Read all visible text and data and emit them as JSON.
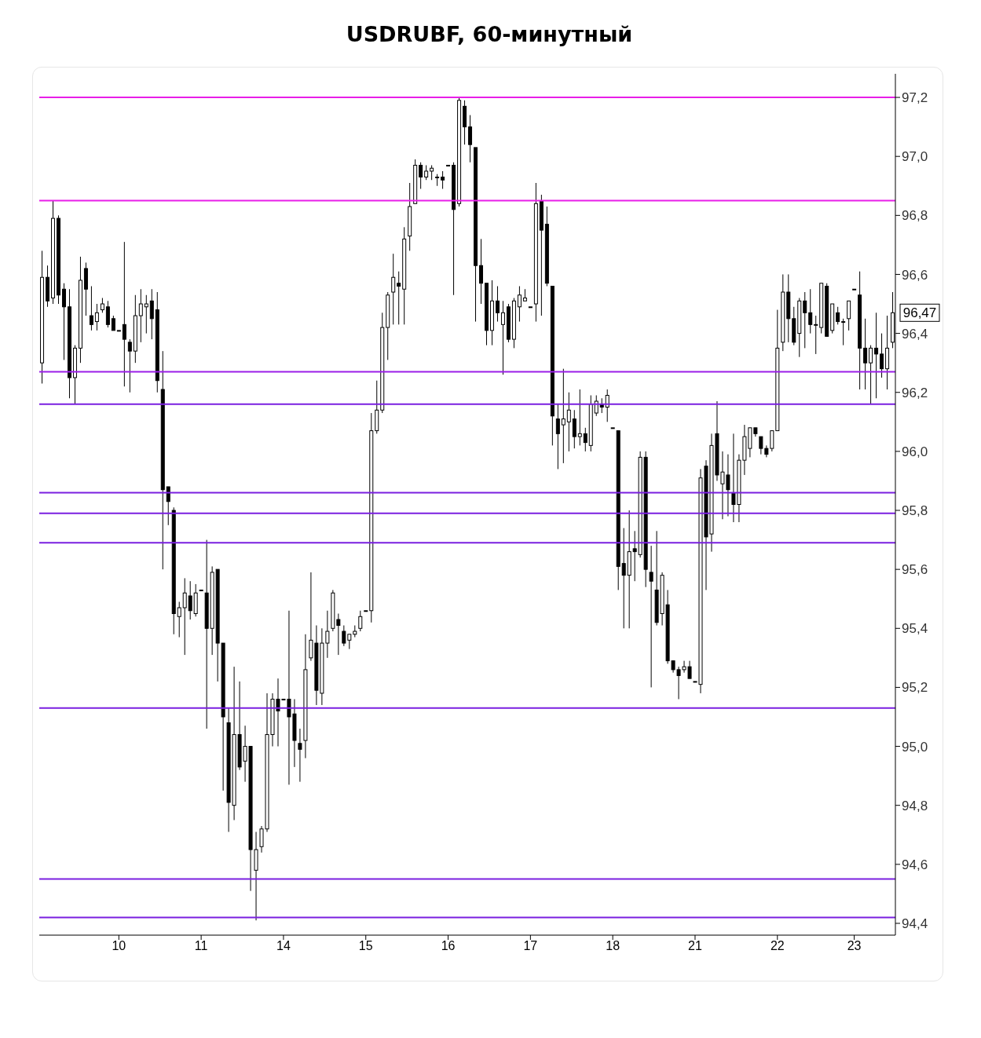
{
  "chart_data": {
    "type": "candlestick",
    "title": "USDRUBF, 60-минутный",
    "color": "#000000",
    "categories": [
      null,
      null,
      null,
      null,
      null,
      null,
      null,
      null,
      null,
      null,
      null,
      null,
      null,
      null,
      "10",
      null,
      null,
      null,
      null,
      null,
      null,
      null,
      null,
      null,
      null,
      null,
      null,
      null,
      null,
      "11",
      null,
      null,
      null,
      null,
      null,
      null,
      null,
      null,
      null,
      null,
      null,
      null,
      null,
      null,
      "14",
      null,
      null,
      null,
      null,
      null,
      null,
      null,
      null,
      null,
      null,
      null,
      null,
      null,
      null,
      "15",
      null,
      null,
      null,
      null,
      null,
      null,
      null,
      null,
      null,
      null,
      null,
      null,
      null,
      null,
      "16",
      null,
      null,
      null,
      null,
      null,
      null,
      null,
      null,
      null,
      null,
      null,
      null,
      null,
      null,
      "17",
      null,
      null,
      null,
      null,
      null,
      null,
      null,
      null,
      null,
      null,
      null,
      null,
      null,
      null,
      "18",
      null,
      null,
      null,
      null,
      null,
      null,
      null,
      null,
      null,
      null,
      null,
      null,
      null,
      null,
      "21",
      null,
      null,
      null,
      null,
      null,
      null,
      null,
      null,
      null,
      null,
      null,
      null,
      null,
      null,
      "22",
      null,
      null,
      null,
      null,
      null,
      null,
      null,
      null,
      null,
      null,
      null,
      null,
      null,
      "23",
      null,
      null,
      null,
      null,
      null,
      null,
      null
    ],
    "ohlc": [
      [
        96.3,
        96.68,
        96.23,
        96.59
      ],
      [
        96.59,
        96.63,
        96.49,
        96.51
      ],
      [
        96.52,
        96.85,
        96.5,
        96.79
      ],
      [
        96.79,
        96.8,
        96.5,
        96.53
      ],
      [
        96.55,
        96.57,
        96.31,
        96.49
      ],
      [
        96.49,
        96.55,
        96.18,
        96.25
      ],
      [
        96.25,
        96.36,
        96.16,
        96.35
      ],
      [
        96.35,
        96.66,
        96.3,
        96.58
      ],
      [
        96.62,
        96.64,
        96.46,
        96.55
      ],
      [
        96.46,
        96.56,
        96.41,
        96.43
      ],
      [
        96.44,
        96.5,
        96.41,
        96.47
      ],
      [
        96.48,
        96.52,
        96.47,
        96.5
      ],
      [
        96.49,
        96.51,
        96.42,
        96.43
      ],
      [
        96.45,
        96.46,
        96.41,
        96.41
      ],
      [
        96.41,
        96.41,
        96.41,
        96.41
      ],
      [
        96.43,
        96.71,
        96.22,
        96.38
      ],
      [
        96.37,
        96.38,
        96.2,
        96.34
      ],
      [
        96.34,
        96.53,
        96.3,
        96.46
      ],
      [
        96.46,
        96.55,
        96.37,
        96.5
      ],
      [
        96.49,
        96.53,
        96.4,
        96.5
      ],
      [
        96.51,
        96.55,
        96.38,
        96.45
      ],
      [
        96.48,
        96.54,
        96.2,
        96.24
      ],
      [
        96.21,
        96.34,
        95.6,
        95.87
      ],
      [
        95.88,
        95.88,
        95.75,
        95.83
      ],
      [
        95.8,
        95.81,
        95.38,
        95.45
      ],
      [
        95.44,
        95.49,
        95.37,
        95.47
      ],
      [
        95.47,
        95.57,
        95.31,
        95.52
      ],
      [
        95.51,
        95.56,
        95.43,
        95.46
      ],
      [
        95.45,
        95.55,
        95.44,
        95.52
      ],
      [
        95.53,
        95.53,
        95.53,
        95.53
      ],
      [
        95.52,
        95.7,
        95.06,
        95.4
      ],
      [
        95.4,
        95.61,
        95.31,
        95.59
      ],
      [
        95.6,
        95.6,
        95.22,
        95.35
      ],
      [
        95.35,
        95.35,
        94.85,
        95.1
      ],
      [
        95.08,
        95.13,
        94.71,
        94.81
      ],
      [
        94.8,
        95.27,
        94.75,
        95.04
      ],
      [
        95.04,
        95.22,
        94.92,
        94.93
      ],
      [
        94.95,
        95.07,
        94.88,
        95.0
      ],
      [
        95.0,
        95.0,
        94.51,
        94.65
      ],
      [
        94.58,
        94.71,
        94.41,
        94.65
      ],
      [
        94.66,
        94.73,
        94.64,
        94.72
      ],
      [
        94.72,
        95.18,
        94.71,
        95.04
      ],
      [
        95.04,
        95.18,
        95.0,
        95.16
      ],
      [
        95.16,
        95.23,
        95.0,
        95.12
      ],
      [
        95.16,
        95.16,
        95.16,
        95.16
      ],
      [
        95.16,
        95.46,
        94.87,
        95.1
      ],
      [
        95.11,
        95.16,
        94.93,
        95.02
      ],
      [
        95.01,
        95.06,
        94.88,
        94.99
      ],
      [
        95.02,
        95.38,
        94.96,
        95.26
      ],
      [
        95.3,
        95.59,
        95.29,
        95.36
      ],
      [
        95.35,
        95.41,
        95.14,
        95.19
      ],
      [
        95.18,
        95.4,
        95.14,
        95.35
      ],
      [
        95.35,
        95.46,
        95.3,
        95.39
      ],
      [
        95.4,
        95.53,
        95.39,
        95.52
      ],
      [
        95.43,
        95.45,
        95.31,
        95.41
      ],
      [
        95.39,
        95.41,
        95.34,
        95.35
      ],
      [
        95.36,
        95.38,
        95.33,
        95.38
      ],
      [
        95.38,
        95.41,
        95.37,
        95.39
      ],
      [
        95.4,
        95.46,
        95.39,
        95.44
      ],
      [
        95.46,
        95.46,
        95.46,
        95.46
      ],
      [
        95.46,
        96.13,
        95.42,
        96.07
      ],
      [
        96.07,
        96.24,
        96.06,
        96.14
      ],
      [
        96.14,
        96.47,
        96.13,
        96.42
      ],
      [
        96.42,
        96.54,
        96.31,
        96.53
      ],
      [
        96.54,
        96.67,
        96.43,
        96.59
      ],
      [
        96.57,
        96.61,
        96.43,
        96.56
      ],
      [
        96.55,
        96.76,
        96.43,
        96.72
      ],
      [
        96.73,
        96.91,
        96.68,
        96.83
      ],
      [
        96.84,
        96.99,
        96.84,
        96.97
      ],
      [
        96.97,
        96.98,
        96.89,
        96.93
      ],
      [
        96.93,
        96.97,
        96.92,
        96.95
      ],
      [
        96.95,
        96.97,
        96.92,
        96.96
      ],
      [
        96.93,
        96.94,
        96.9,
        96.93
      ],
      [
        96.93,
        96.95,
        96.89,
        96.92
      ],
      [
        96.97,
        96.97,
        96.97,
        96.97
      ],
      [
        96.97,
        96.98,
        96.53,
        96.82
      ],
      [
        96.84,
        97.2,
        96.83,
        97.19
      ],
      [
        97.17,
        97.19,
        97.04,
        97.1
      ],
      [
        97.1,
        97.14,
        96.98,
        97.04
      ],
      [
        97.03,
        97.03,
        96.44,
        96.63
      ],
      [
        96.63,
        96.72,
        96.5,
        96.57
      ],
      [
        96.57,
        96.57,
        96.36,
        96.41
      ],
      [
        96.41,
        96.58,
        96.36,
        96.51
      ],
      [
        96.51,
        96.56,
        96.44,
        96.47
      ],
      [
        96.43,
        96.51,
        96.26,
        96.47
      ],
      [
        96.49,
        96.5,
        96.37,
        96.38
      ],
      [
        96.38,
        96.52,
        96.35,
        96.51
      ],
      [
        96.49,
        96.56,
        96.44,
        96.53
      ],
      [
        96.51,
        96.55,
        96.51,
        96.52
      ],
      [
        96.49,
        96.49,
        96.49,
        96.49
      ],
      [
        96.5,
        96.91,
        96.44,
        96.84
      ],
      [
        96.85,
        96.87,
        96.46,
        96.75
      ],
      [
        96.77,
        96.83,
        96.56,
        96.57
      ],
      [
        96.56,
        96.56,
        96.02,
        96.12
      ],
      [
        96.11,
        96.16,
        95.94,
        96.06
      ],
      [
        96.09,
        96.28,
        95.96,
        96.11
      ],
      [
        96.1,
        96.2,
        96.0,
        96.14
      ],
      [
        96.11,
        96.14,
        96.01,
        96.05
      ],
      [
        96.05,
        96.21,
        96.02,
        96.06
      ],
      [
        96.06,
        96.08,
        96.0,
        96.03
      ],
      [
        96.02,
        96.19,
        96.0,
        96.16
      ],
      [
        96.13,
        96.19,
        96.12,
        96.17
      ],
      [
        96.16,
        96.18,
        96.13,
        96.15
      ],
      [
        96.15,
        96.21,
        96.1,
        96.19
      ],
      [
        96.08,
        96.08,
        96.08,
        96.08
      ],
      [
        96.07,
        96.07,
        95.53,
        95.61
      ],
      [
        95.62,
        95.74,
        95.4,
        95.58
      ],
      [
        95.58,
        95.8,
        95.4,
        95.66
      ],
      [
        95.67,
        95.73,
        95.56,
        95.66
      ],
      [
        95.65,
        96.0,
        95.64,
        95.98
      ],
      [
        95.98,
        96.0,
        95.54,
        95.6
      ],
      [
        95.59,
        95.68,
        95.2,
        95.56
      ],
      [
        95.53,
        95.73,
        95.41,
        95.42
      ],
      [
        95.45,
        95.59,
        95.41,
        95.58
      ],
      [
        95.48,
        95.53,
        95.28,
        95.29
      ],
      [
        95.29,
        95.29,
        95.25,
        95.26
      ],
      [
        95.26,
        95.27,
        95.16,
        95.24
      ],
      [
        95.26,
        95.29,
        95.25,
        95.27
      ],
      [
        95.27,
        95.29,
        95.23,
        95.23
      ],
      [
        95.22,
        95.22,
        95.22,
        95.22
      ],
      [
        95.21,
        95.94,
        95.18,
        95.91
      ],
      [
        95.95,
        95.97,
        95.53,
        95.71
      ],
      [
        95.72,
        96.06,
        95.66,
        96.02
      ],
      [
        96.06,
        96.17,
        95.9,
        95.92
      ],
      [
        95.89,
        96.0,
        95.77,
        95.93
      ],
      [
        95.92,
        95.99,
        95.78,
        95.87
      ],
      [
        95.86,
        96.06,
        95.76,
        95.82
      ],
      [
        95.82,
        95.99,
        95.76,
        95.97
      ],
      [
        95.97,
        96.09,
        95.92,
        96.05
      ],
      [
        96.01,
        96.08,
        95.98,
        96.08
      ],
      [
        96.08,
        96.08,
        96.05,
        96.06
      ],
      [
        96.05,
        96.05,
        95.99,
        96.01
      ],
      [
        96.01,
        96.02,
        95.98,
        95.99
      ],
      [
        96.01,
        96.07,
        96.0,
        96.07
      ],
      [
        96.07,
        96.48,
        96.07,
        96.35
      ],
      [
        96.37,
        96.6,
        96.34,
        96.54
      ],
      [
        96.54,
        96.6,
        96.37,
        96.45
      ],
      [
        96.45,
        96.49,
        96.36,
        96.37
      ],
      [
        96.4,
        96.52,
        96.32,
        96.51
      ],
      [
        96.51,
        96.54,
        96.35,
        96.47
      ],
      [
        96.47,
        96.55,
        96.4,
        96.43
      ],
      [
        96.43,
        96.46,
        96.33,
        96.43
      ],
      [
        96.42,
        96.57,
        96.4,
        96.57
      ],
      [
        96.56,
        96.57,
        96.39,
        96.39
      ],
      [
        96.41,
        96.5,
        96.4,
        96.5
      ],
      [
        96.47,
        96.49,
        96.43,
        96.44
      ],
      [
        96.44,
        96.45,
        96.36,
        96.44
      ],
      [
        96.45,
        96.51,
        96.41,
        96.51
      ],
      [
        96.55,
        96.55,
        96.55,
        96.55
      ],
      [
        96.53,
        96.61,
        96.21,
        96.35
      ],
      [
        96.35,
        96.45,
        96.21,
        96.3
      ],
      [
        96.3,
        96.36,
        96.16,
        96.35
      ],
      [
        96.35,
        96.47,
        96.18,
        96.33
      ],
      [
        96.33,
        96.4,
        96.25,
        96.28
      ],
      [
        96.28,
        96.46,
        96.21,
        96.35
      ],
      [
        96.37,
        96.54,
        96.35,
        96.47
      ]
    ],
    "ylim": [
      94.36,
      97.28
    ],
    "yticks": [
      {
        "value": 94.4,
        "label": "94,4"
      },
      {
        "value": 94.6,
        "label": "94,6"
      },
      {
        "value": 94.8,
        "label": "94,8"
      },
      {
        "value": 95.0,
        "label": "95,0"
      },
      {
        "value": 95.2,
        "label": "95,2"
      },
      {
        "value": 95.4,
        "label": "95,4"
      },
      {
        "value": 95.6,
        "label": "95,6"
      },
      {
        "value": 95.8,
        "label": "95,8"
      },
      {
        "value": 96.0,
        "label": "96,0"
      },
      {
        "value": 96.2,
        "label": "96,2"
      },
      {
        "value": 96.4,
        "label": "96,4"
      },
      {
        "value": 96.6,
        "label": "96,6"
      },
      {
        "value": 96.8,
        "label": "96,8"
      },
      {
        "value": 97.0,
        "label": "97,0"
      },
      {
        "value": 97.2,
        "label": "97,2"
      }
    ],
    "ref_lines": [
      {
        "axis": "y",
        "value": 97.2,
        "color": "#e81ee8"
      },
      {
        "axis": "y",
        "value": 96.85,
        "color": "#e81ee8"
      },
      {
        "axis": "y",
        "value": 96.27,
        "color": "#9b1ee8"
      },
      {
        "axis": "y",
        "value": 96.16,
        "color": "#7a1fe0"
      },
      {
        "axis": "y",
        "value": 95.86,
        "color": "#7a1fe0"
      },
      {
        "axis": "y",
        "value": 95.79,
        "color": "#7a1fe0"
      },
      {
        "axis": "y",
        "value": 95.69,
        "color": "#7a1fe0"
      },
      {
        "axis": "y",
        "value": 95.13,
        "color": "#7a1fe0"
      },
      {
        "axis": "y",
        "value": 94.55,
        "color": "#7a1fe0"
      },
      {
        "axis": "y",
        "value": 94.42,
        "color": "#7a1fe0"
      }
    ],
    "annotations": [
      "96,47"
    ]
  }
}
